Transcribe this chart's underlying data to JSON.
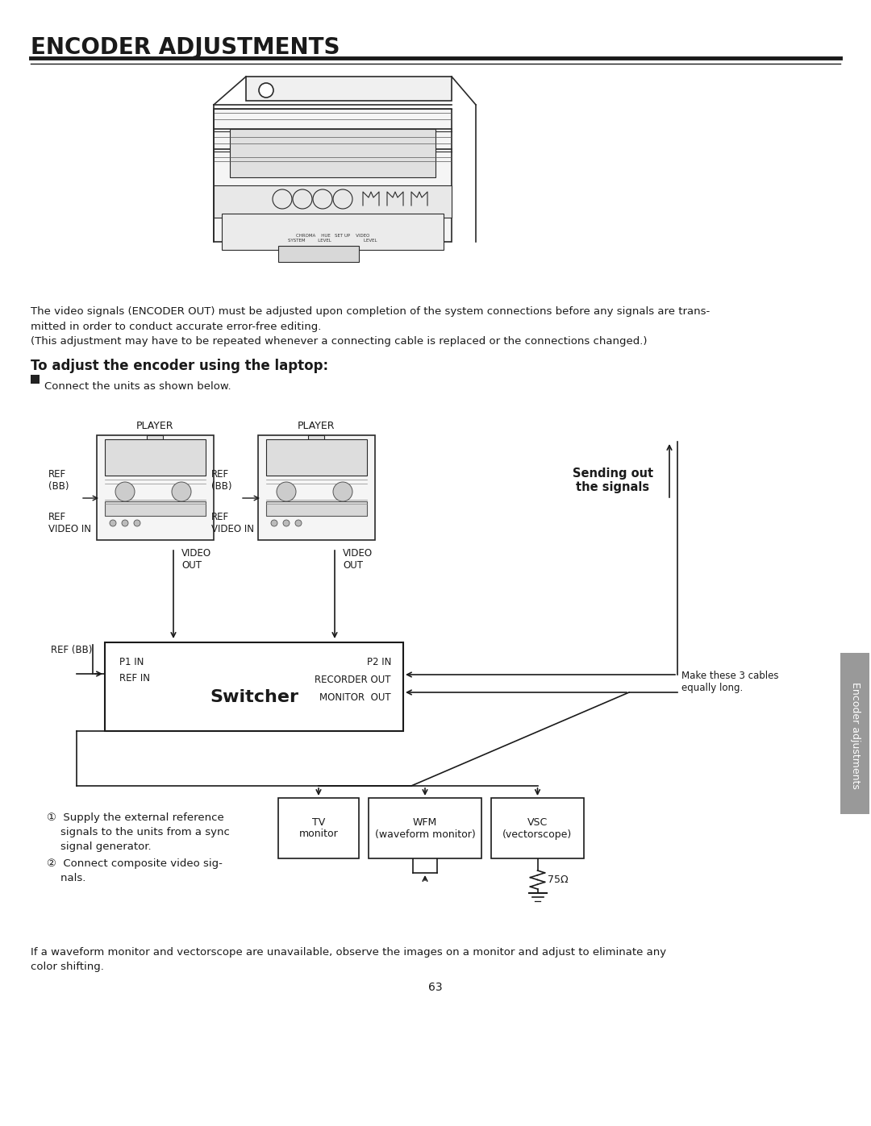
{
  "title": "ENCODER ADJUSTMENTS",
  "body_text1": "The video signals (ENCODER OUT) must be adjusted upon completion of the system connections before any signals are trans-\nmitted in order to conduct accurate error-free editing.\n(This adjustment may have to be repeated whenever a connecting cable is replaced or the connections changed.)",
  "section_heading": "To adjust the encoder using the laptop:",
  "step1_text": "Connect the units as shown below.",
  "sending_out": "Sending out\nthe signals",
  "make_cables": "Make these 3 cables\nequally long.",
  "ref_bb_left_top": "REF\n(BB)",
  "ref_left": "REF\nVIDEO IN",
  "video_out_left": "VIDEO\nOUT",
  "ref_bb_mid_top": "REF\n(BB)",
  "ref_mid": "REF\nVIDEO IN",
  "video_out_mid": "VIDEO\nOUT",
  "player_left": "PLAYER",
  "player_right": "PLAYER",
  "ref_bb_bottom": "REF (BB)",
  "switcher_label": "Switcher",
  "p1_in": "P1 IN",
  "ref_in": "REF IN",
  "p2_in": "P2 IN",
  "recorder_out": "RECORDER OUT",
  "monitor_out": "MONITOR  OUT",
  "circle1": "①  Supply the external reference\n    signals to the units from a sync\n    signal generator.",
  "circle2": "②  Connect composite video sig-\n    nals.",
  "tv_monitor": "TV\nmonitor",
  "wfm_monitor": "WFM\n(waveform monitor)",
  "vsc_monitor": "VSC\n(vectorscope)",
  "resistor_label": "75Ω",
  "footer_text": "If a waveform monitor and vectorscope are unavailable, observe the images on a monitor and adjust to eliminate any\ncolor shifting.",
  "page_number": "63",
  "side_label": "Encoder adjustments",
  "bg_color": "#ffffff",
  "text_color": "#1a1a1a",
  "line_color": "#1a1a1a"
}
